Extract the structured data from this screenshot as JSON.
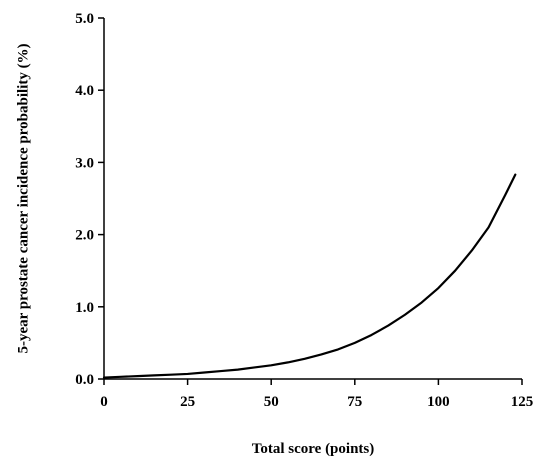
{
  "chart_data": {
    "type": "line",
    "xlabel": "Total score (points)",
    "ylabel": "5-year prostate cancer incidence probability (%)",
    "xlim": [
      0,
      125
    ],
    "ylim": [
      0,
      5
    ],
    "x_ticks": [
      "0",
      "25",
      "50",
      "75",
      "100",
      "125"
    ],
    "y_ticks": [
      "0.0",
      "1.0",
      "2.0",
      "3.0",
      "4.0",
      "5.0"
    ],
    "grid": false,
    "series": [
      {
        "x": [
          0,
          5,
          10,
          15,
          20,
          25,
          30,
          35,
          40,
          45,
          50,
          55,
          60,
          65,
          70,
          75,
          80,
          85,
          90,
          95,
          100,
          105,
          110,
          115,
          120,
          123
        ],
        "values": [
          0.02,
          0.03,
          0.04,
          0.05,
          0.06,
          0.07,
          0.09,
          0.11,
          0.13,
          0.16,
          0.19,
          0.23,
          0.28,
          0.34,
          0.41,
          0.5,
          0.61,
          0.74,
          0.89,
          1.06,
          1.26,
          1.5,
          1.78,
          2.1,
          2.55,
          2.83
        ],
        "color": "#000000"
      }
    ]
  }
}
